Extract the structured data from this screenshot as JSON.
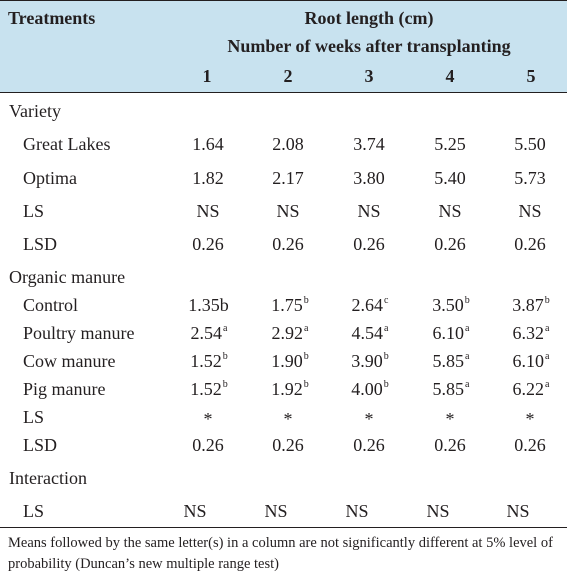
{
  "header": {
    "treatments_label": "Treatments",
    "root_length_label": "Root length (cm)",
    "weeks_label": "Number of weeks after transplanting",
    "week_numbers": [
      "1",
      "2",
      "3",
      "4",
      "5"
    ]
  },
  "sections": {
    "variety": {
      "label": "Variety",
      "rows": [
        {
          "name": "Great Lakes",
          "values": [
            "1.64",
            "2.08",
            "3.74",
            "5.25",
            "5.50"
          ]
        },
        {
          "name": "Optima",
          "values": [
            "1.82",
            "2.17",
            "3.80",
            "5.40",
            "5.73"
          ]
        },
        {
          "name": "LS",
          "values": [
            "NS",
            "NS",
            "NS",
            "NS",
            "NS"
          ]
        },
        {
          "name": "LSD",
          "values": [
            "0.26",
            "0.26",
            "0.26",
            "0.26",
            "0.26"
          ]
        }
      ]
    },
    "organic_manure": {
      "label": "Organic manure",
      "rows": [
        {
          "name": "Control",
          "values": [
            "1.35b",
            "1.75",
            "2.64",
            "3.50",
            "3.87"
          ],
          "sups": [
            "",
            "b",
            "c",
            "b",
            "b"
          ]
        },
        {
          "name": "Poultry manure",
          "values": [
            "2.54",
            "2.92",
            "4.54",
            "6.10",
            "6.32"
          ],
          "sups": [
            "a",
            "a",
            "a",
            "a",
            "a"
          ]
        },
        {
          "name": "Cow manure",
          "values": [
            "1.52",
            "1.90",
            "3.90",
            "5.85",
            "6.10"
          ],
          "sups": [
            "b",
            "b",
            "b",
            "a",
            "a"
          ]
        },
        {
          "name": "Pig manure",
          "values": [
            "1.52",
            "1.92",
            "4.00",
            "5.85",
            "6.22"
          ],
          "sups": [
            "b",
            "b",
            "b",
            "a",
            "a"
          ]
        },
        {
          "name": "LS",
          "values": [
            "*",
            "*",
            "*",
            "*",
            "*"
          ]
        },
        {
          "name": "LSD",
          "values": [
            "0.26",
            "0.26",
            "0.26",
            "0.26",
            "0.26"
          ]
        }
      ]
    },
    "interaction": {
      "label": "Interaction",
      "rows": [
        {
          "name": "LS",
          "values": [
            "NS",
            "NS",
            "NS",
            "NS",
            "NS"
          ]
        }
      ]
    }
  },
  "footnote": "Means followed by the same letter(s) in a column are not significantly different at 5% level of probability (Duncan’s new multiple range test)"
}
